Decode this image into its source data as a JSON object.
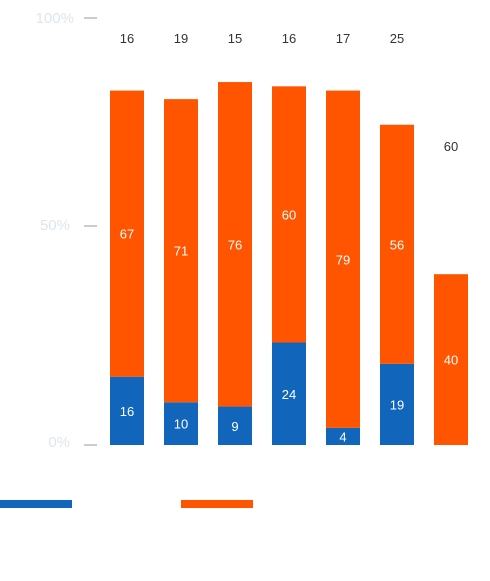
{
  "colors": {
    "blue": "#1166bb",
    "orange": "#ff5500",
    "axis_text": "#dde6ef",
    "tick_line": "#999999",
    "top_text": "#333333"
  },
  "chart_data": {
    "type": "bar",
    "stacked": true,
    "y_axis": {
      "ticks": [
        "100%",
        "50%",
        "0%"
      ],
      "ylim": [
        0,
        100
      ]
    },
    "series": [
      {
        "values": [
          16,
          10,
          9,
          24,
          4,
          19,
          0
        ],
        "color": "#1166bb",
        "labels": [
          "16",
          "10",
          "9",
          "24",
          "4",
          "19",
          ""
        ]
      },
      {
        "values": [
          67,
          71,
          76,
          60,
          79,
          56,
          40
        ],
        "color": "#ff5500",
        "labels": [
          "67",
          "71",
          "76",
          "60",
          "79",
          "56",
          "40"
        ]
      },
      {
        "values": [
          16,
          19,
          15,
          16,
          17,
          25,
          60
        ],
        "labels": [
          "16",
          "19",
          "15",
          "16",
          "17",
          "25",
          "60"
        ]
      }
    ],
    "legend": {
      "position": "bottom",
      "entries": [
        {
          "color": "#1166bb"
        },
        {
          "color": "#ff5500"
        }
      ]
    },
    "grid": false
  }
}
